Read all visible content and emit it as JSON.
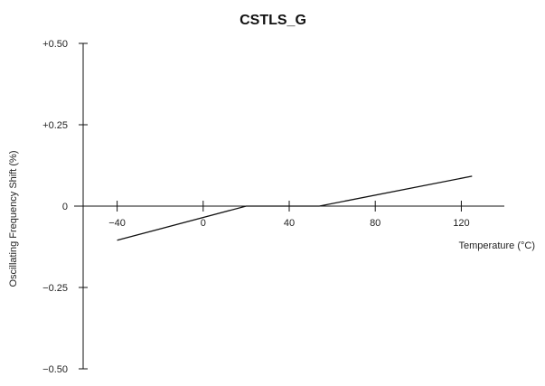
{
  "chart_data": {
    "type": "line",
    "title": "CSTLS_G",
    "xlabel": "Temperature (°C)",
    "ylabel": "Oscillating Frequency Shift (%)",
    "xlim": [
      -60,
      140
    ],
    "ylim": [
      -0.5,
      0.5
    ],
    "x_ticks": [
      -40,
      0,
      40,
      80,
      120
    ],
    "x_tick_labels": [
      "−40",
      "0",
      "40",
      "80",
      "120"
    ],
    "y_ticks": [
      0.5,
      0.25,
      0,
      -0.25,
      -0.5
    ],
    "y_tick_labels": [
      "+0.50",
      "+0.25",
      "0",
      "−0.25",
      "−0.50"
    ],
    "grid": false,
    "series": [
      {
        "x": [
          -40,
          20,
          54,
          125
        ],
        "y": [
          -0.105,
          0.0,
          0.0,
          0.092
        ]
      }
    ],
    "line_color": "#111111"
  }
}
